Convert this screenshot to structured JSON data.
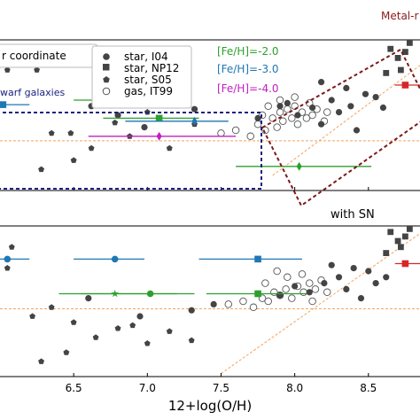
{
  "chart_data": {
    "type": "scatter",
    "xlabel": "12+log(O/H)",
    "x_ticks": [
      "6.5",
      "7.0",
      "7.5",
      "8.0",
      "8.5"
    ],
    "x_tick_values": [
      6.5,
      7.0,
      7.5,
      8.0,
      8.5
    ],
    "xlim": [
      6.0,
      8.85
    ],
    "top_panel": {
      "ylim": [
        0,
        1
      ],
      "legend_title": "r coordinate",
      "legend_placement": "top-left",
      "legend_entries": [
        "star, I04",
        "star, NP12",
        "star, S05",
        "gas, IT99"
      ],
      "metal_rich_label": "Metal-r",
      "dwarf_label": "warf galaxies",
      "feh_labels": [
        {
          "text": "[Fe/H]=-2.0",
          "color": "#2ca02c"
        },
        {
          "text": "[Fe/H]=-3.0",
          "color": "#1f77b4"
        },
        {
          "text": "[Fe/H]=-4.0",
          "color": "#c020c0"
        }
      ],
      "hline_y": 0.33,
      "diagonal": {
        "x1": 7.85,
        "y1": 0.1,
        "x2": 8.85,
        "y2": 0.83
      },
      "star_I04": [
        [
          6.62,
          0.56
        ],
        [
          6.8,
          0.5
        ],
        [
          6.98,
          0.42
        ],
        [
          7.32,
          0.54
        ],
        [
          7.75,
          0.48
        ],
        [
          7.9,
          0.56
        ],
        [
          7.95,
          0.58
        ],
        [
          8.02,
          0.5
        ],
        [
          8.12,
          0.55
        ],
        [
          8.18,
          0.44
        ],
        [
          8.25,
          0.6
        ],
        [
          8.3,
          0.52
        ],
        [
          8.38,
          0.56
        ],
        [
          8.42,
          0.4
        ],
        [
          8.48,
          0.64
        ],
        [
          8.55,
          0.62
        ],
        [
          8.6,
          0.55
        ],
        [
          8.18,
          0.72
        ],
        [
          8.35,
          0.68
        ]
      ],
      "star_NP12": [
        [
          8.65,
          0.94
        ],
        [
          8.7,
          0.88
        ],
        [
          8.72,
          0.8
        ],
        [
          8.75,
          0.92
        ],
        [
          8.62,
          0.78
        ],
        [
          8.78,
          0.98
        ]
      ],
      "star_S05": [
        [
          6.05,
          0.8
        ],
        [
          6.25,
          0.8
        ],
        [
          6.35,
          0.38
        ],
        [
          6.48,
          0.38
        ],
        [
          6.62,
          0.28
        ],
        [
          6.78,
          0.45
        ],
        [
          6.88,
          0.36
        ],
        [
          7.0,
          0.52
        ],
        [
          7.15,
          0.28
        ],
        [
          7.32,
          0.44
        ],
        [
          6.28,
          0.14
        ],
        [
          6.5,
          0.2
        ]
      ],
      "gas_IT99": [
        [
          7.5,
          0.38
        ],
        [
          7.6,
          0.4
        ],
        [
          7.7,
          0.36
        ],
        [
          7.75,
          0.44
        ],
        [
          7.8,
          0.4
        ],
        [
          7.85,
          0.48
        ],
        [
          7.88,
          0.42
        ],
        [
          7.9,
          0.52
        ],
        [
          7.92,
          0.46
        ],
        [
          7.95,
          0.54
        ],
        [
          7.98,
          0.48
        ],
        [
          8.0,
          0.56
        ],
        [
          8.02,
          0.44
        ],
        [
          8.05,
          0.52
        ],
        [
          8.08,
          0.48
        ],
        [
          8.1,
          0.58
        ],
        [
          8.12,
          0.5
        ],
        [
          8.15,
          0.54
        ],
        [
          8.2,
          0.46
        ],
        [
          8.22,
          0.52
        ],
        [
          7.82,
          0.56
        ],
        [
          7.78,
          0.5
        ],
        [
          7.9,
          0.6
        ],
        [
          8.0,
          0.62
        ]
      ],
      "errorbars": [
        {
          "x": 6.78,
          "y": 0.6,
          "xerr": [
            6.5,
            7.02
          ],
          "color": "#2ca02c",
          "marker": "circle"
        },
        {
          "x": 6.02,
          "y": 0.57,
          "xerr": [
            6.0,
            6.2
          ],
          "color": "#1f77b4",
          "marker": "square"
        },
        {
          "x": 7.08,
          "y": 0.48,
          "xerr": [
            6.7,
            7.35
          ],
          "color": "#2ca02c",
          "marker": "square"
        },
        {
          "x": 7.32,
          "y": 0.46,
          "xerr": [
            6.85,
            7.55
          ],
          "color": "#1f77b4",
          "marker": "diamond"
        },
        {
          "x": 7.08,
          "y": 0.36,
          "xerr": [
            6.6,
            7.6
          ],
          "color": "#c020c0",
          "marker": "diamond"
        },
        {
          "x": 8.03,
          "y": 0.16,
          "xerr": [
            7.6,
            8.52
          ],
          "color": "#2ca02c",
          "marker": "diamond"
        },
        {
          "x": 8.75,
          "y": 0.7,
          "xerr": [
            8.68,
            8.85
          ],
          "color": "#d62728",
          "marker": "square"
        }
      ]
    },
    "bottom_panel": {
      "ylim": [
        0,
        1
      ],
      "label": "with SN",
      "hline_y": 0.45,
      "diagonal": {
        "x1": 7.5,
        "y1": 0.02,
        "x2": 8.85,
        "y2": 0.95
      },
      "star_I04": [
        [
          6.6,
          0.52
        ],
        [
          6.95,
          0.4
        ],
        [
          7.3,
          0.44
        ],
        [
          7.45,
          0.48
        ],
        [
          7.9,
          0.54
        ],
        [
          8.0,
          0.6
        ],
        [
          8.1,
          0.56
        ],
        [
          8.2,
          0.62
        ],
        [
          8.3,
          0.66
        ],
        [
          8.35,
          0.58
        ],
        [
          8.45,
          0.52
        ],
        [
          8.5,
          0.7
        ],
        [
          8.55,
          0.62
        ],
        [
          8.62,
          0.66
        ],
        [
          8.25,
          0.74
        ],
        [
          8.4,
          0.72
        ]
      ],
      "star_NP12": [
        [
          8.65,
          0.96
        ],
        [
          8.7,
          0.9
        ],
        [
          8.72,
          0.86
        ],
        [
          8.78,
          0.98
        ],
        [
          8.62,
          0.82
        ],
        [
          8.75,
          0.93
        ]
      ],
      "star_S05": [
        [
          6.05,
          0.72
        ],
        [
          6.22,
          0.4
        ],
        [
          6.35,
          0.46
        ],
        [
          6.5,
          0.36
        ],
        [
          6.65,
          0.26
        ],
        [
          6.8,
          0.32
        ],
        [
          6.9,
          0.34
        ],
        [
          7.0,
          0.22
        ],
        [
          7.15,
          0.3
        ],
        [
          7.3,
          0.24
        ],
        [
          6.28,
          0.1
        ],
        [
          6.45,
          0.16
        ],
        [
          6.08,
          0.86
        ]
      ],
      "gas_IT99": [
        [
          7.55,
          0.48
        ],
        [
          7.65,
          0.5
        ],
        [
          7.72,
          0.46
        ],
        [
          7.78,
          0.52
        ],
        [
          7.82,
          0.5
        ],
        [
          7.86,
          0.56
        ],
        [
          7.9,
          0.54
        ],
        [
          7.94,
          0.58
        ],
        [
          7.98,
          0.52
        ],
        [
          8.02,
          0.6
        ],
        [
          8.06,
          0.56
        ],
        [
          8.1,
          0.62
        ],
        [
          8.14,
          0.58
        ],
        [
          8.18,
          0.64
        ],
        [
          8.22,
          0.56
        ],
        [
          8.12,
          0.5
        ],
        [
          7.8,
          0.62
        ],
        [
          7.95,
          0.66
        ],
        [
          8.05,
          0.68
        ],
        [
          7.88,
          0.7
        ]
      ],
      "errorbars": [
        {
          "x": 6.78,
          "y": 0.78,
          "xerr": [
            6.5,
            6.98
          ],
          "color": "#1f77b4",
          "marker": "circle"
        },
        {
          "x": 6.78,
          "y": 0.55,
          "xerr": [
            6.4,
            7.2
          ],
          "color": "#2ca02c",
          "marker": "star"
        },
        {
          "x": 7.02,
          "y": 0.55,
          "xerr": [
            6.55,
            7.32
          ],
          "color": "#2ca02c",
          "marker": "circle"
        },
        {
          "x": 7.75,
          "y": 0.78,
          "xerr": [
            7.35,
            8.05
          ],
          "color": "#1f77b4",
          "marker": "square"
        },
        {
          "x": 7.75,
          "y": 0.55,
          "xerr": [
            7.4,
            8.08
          ],
          "color": "#2ca02c",
          "marker": "square"
        },
        {
          "x": 6.05,
          "y": 0.78,
          "xerr": [
            6.0,
            6.2
          ],
          "color": "#1f77b4",
          "marker": "circle"
        },
        {
          "x": 8.75,
          "y": 0.75,
          "xerr": [
            8.68,
            8.85
          ],
          "color": "#d62728",
          "marker": "square"
        }
      ]
    }
  }
}
